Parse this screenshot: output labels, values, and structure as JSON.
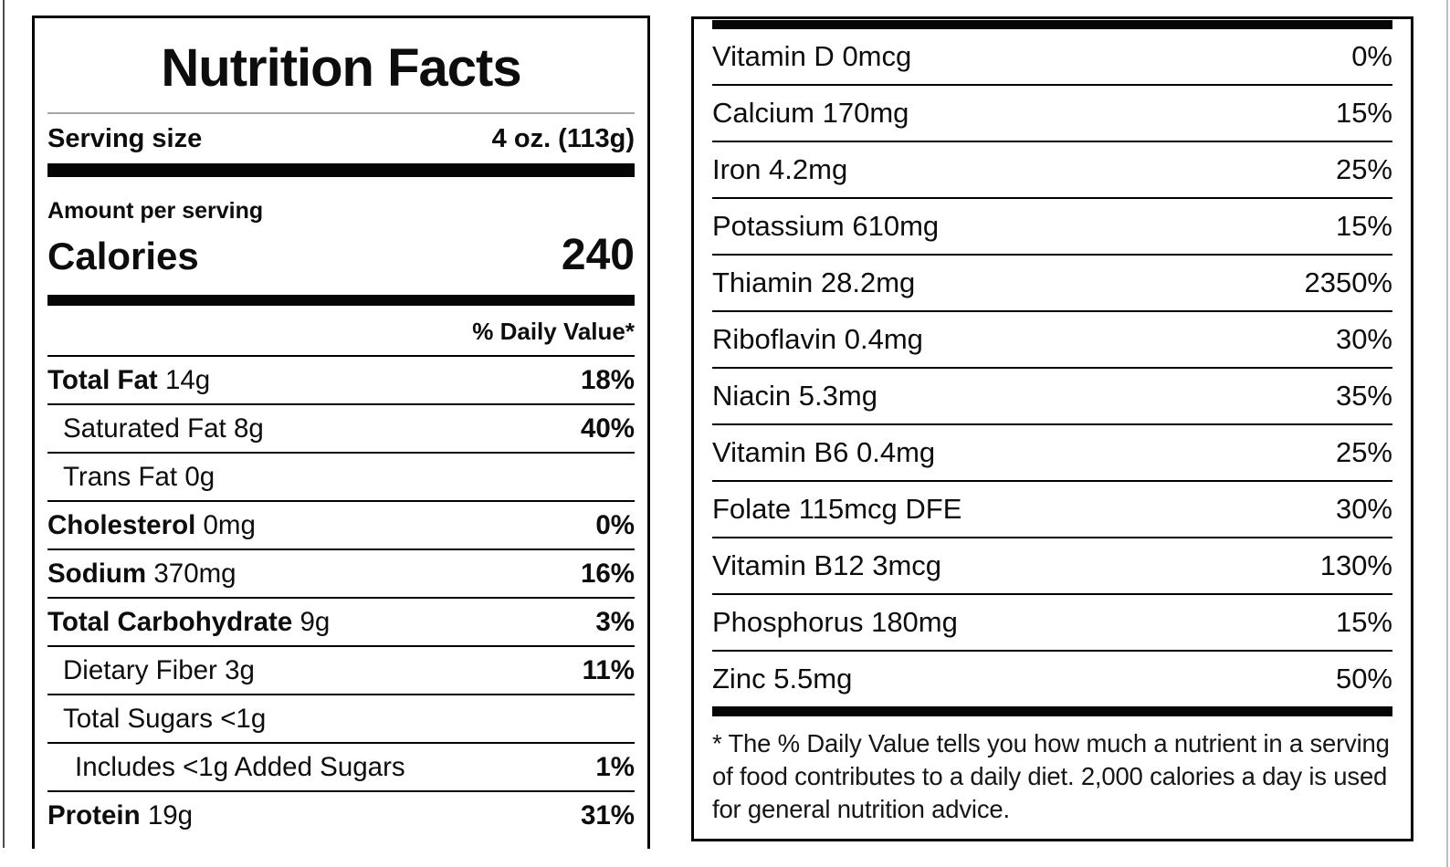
{
  "left_panel": {
    "title": "Nutrition Facts",
    "serving_size": {
      "label": "Serving size",
      "value": "4 oz. (113g)"
    },
    "amount_per_serving": "Amount per serving",
    "calories": {
      "label": "Calories",
      "value": "240"
    },
    "daily_value_header": "% Daily Value*",
    "rows": [
      {
        "name": "Total Fat",
        "amount": "14g",
        "dv": "18%"
      },
      {
        "name": "Saturated Fat",
        "amount": "8g",
        "dv": "40%"
      },
      {
        "name": "Trans Fat",
        "amount": "0g",
        "dv": ""
      },
      {
        "name": "Cholesterol",
        "amount": "0mg",
        "dv": "0%"
      },
      {
        "name": "Sodium",
        "amount": "370mg",
        "dv": "16%"
      },
      {
        "name": "Total Carbohydrate",
        "amount": "9g",
        "dv": "3%"
      },
      {
        "name": "Dietary Fiber",
        "amount": "3g",
        "dv": "11%"
      },
      {
        "name": "Total Sugars",
        "amount": "<1g",
        "dv": ""
      },
      {
        "name": "Includes <1g Added Sugars",
        "amount": "",
        "dv": "1%"
      },
      {
        "name": "Protein",
        "amount": "19g",
        "dv": "31%"
      }
    ]
  },
  "right_panel": {
    "rows": [
      {
        "name": "Vitamin D",
        "amount": "0mcg",
        "dv": "0%"
      },
      {
        "name": "Calcium",
        "amount": "170mg",
        "dv": "15%"
      },
      {
        "name": "Iron",
        "amount": "4.2mg",
        "dv": "25%"
      },
      {
        "name": "Potassium",
        "amount": "610mg",
        "dv": "15%"
      },
      {
        "name": "Thiamin",
        "amount": "28.2mg",
        "dv": "2350%"
      },
      {
        "name": "Riboflavin",
        "amount": "0.4mg",
        "dv": "30%"
      },
      {
        "name": "Niacin",
        "amount": "5.3mg",
        "dv": "35%"
      },
      {
        "name": "Vitamin B6",
        "amount": "0.4mg",
        "dv": "25%"
      },
      {
        "name": "Folate",
        "amount": "115mcg DFE",
        "dv": "30%"
      },
      {
        "name": "Vitamin B12",
        "amount": "3mcg",
        "dv": "130%"
      },
      {
        "name": "Phosphorus",
        "amount": "180mg",
        "dv": "15%"
      },
      {
        "name": "Zinc",
        "amount": "5.5mg",
        "dv": "50%"
      }
    ],
    "footnote": "* The % Daily Value tells you how much a nutrient in a serving of food contributes to a daily diet. 2,000 calories a day is used for general nutrition advice."
  }
}
